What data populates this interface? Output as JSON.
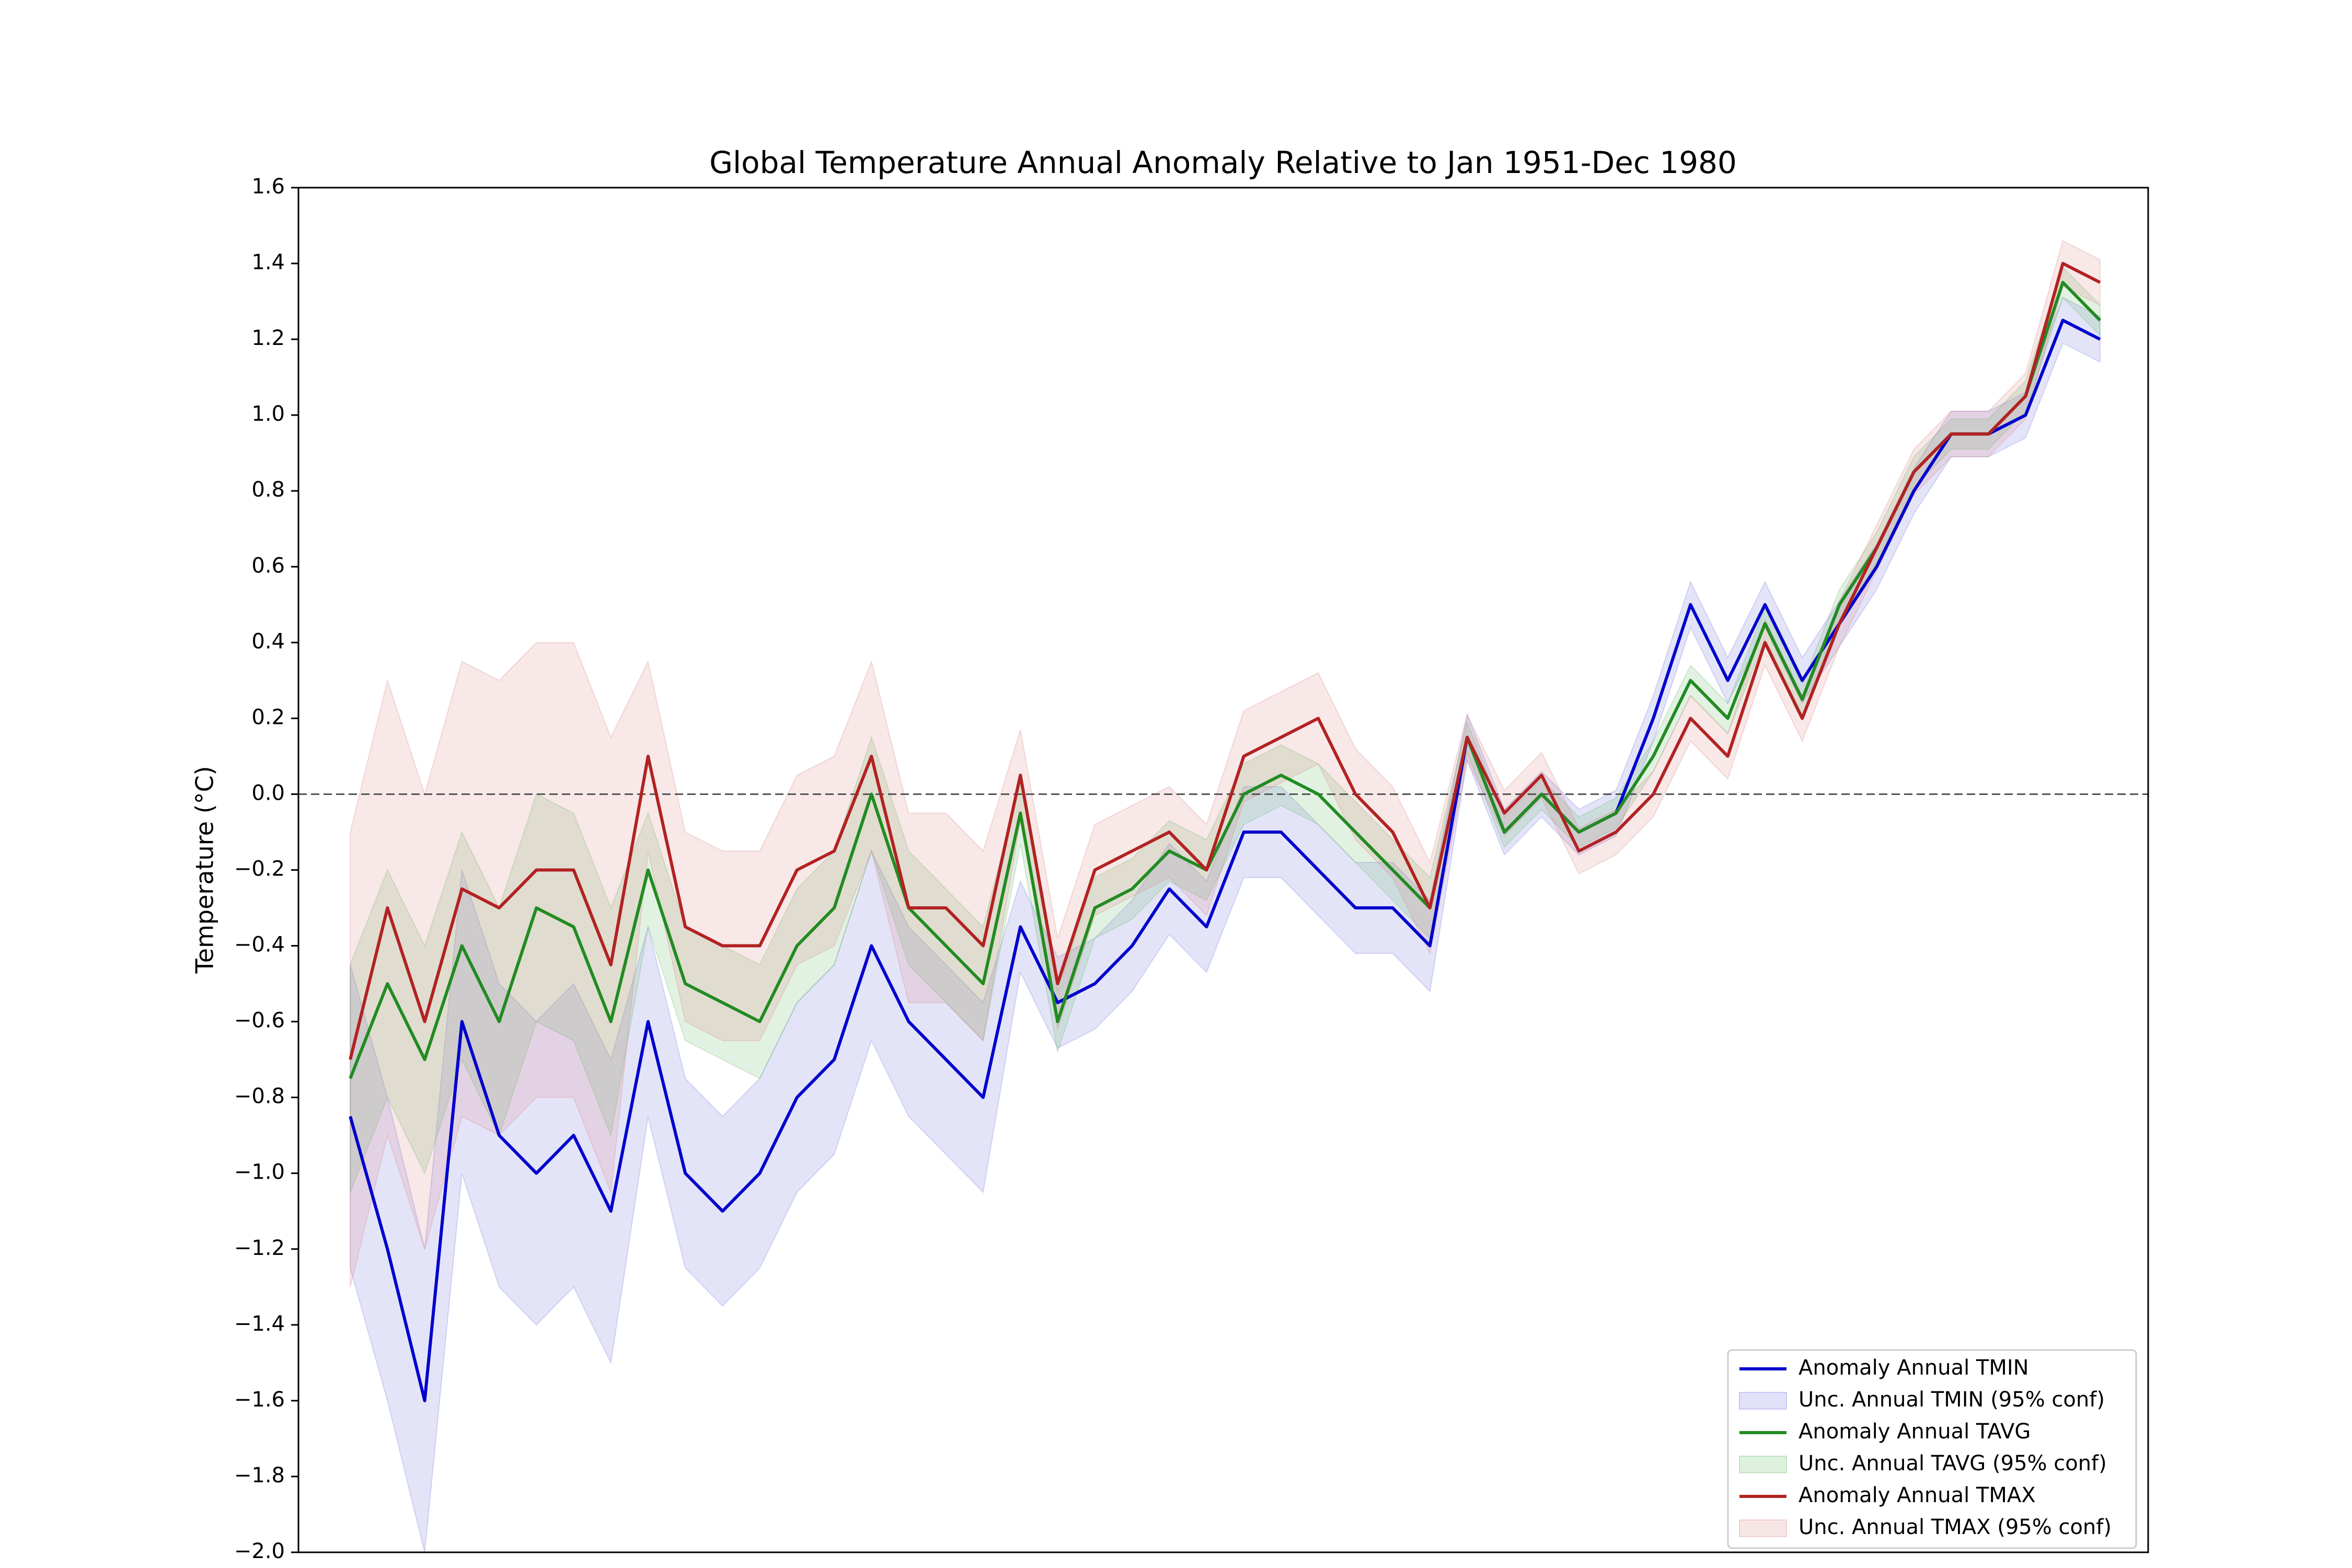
{
  "chart_data": {
    "type": "line",
    "title": "Global Temperature Annual Anomaly Relative to Jan 1951-Dec 1980",
    "y_label": "Temperature (°C)",
    "categories": [
      null,
      null,
      null,
      null,
      null,
      null,
      null,
      null,
      null,
      null,
      null,
      null,
      null,
      null,
      null,
      null,
      null,
      null,
      null,
      null,
      null,
      null,
      null,
      null,
      null,
      null,
      null,
      null,
      null,
      null,
      null,
      null,
      null,
      null,
      null,
      null,
      null,
      null,
      null,
      null,
      null,
      null,
      null,
      null,
      null,
      null,
      null,
      null
    ],
    "ylim": [
      -2.0,
      1.6
    ],
    "yticks": [
      {
        "value": -2.0,
        "label": "−2.0"
      },
      {
        "value": -1.8,
        "label": "−1.8"
      },
      {
        "value": -1.6,
        "label": "−1.6"
      },
      {
        "value": -1.4,
        "label": "−1.4"
      },
      {
        "value": -1.2,
        "label": "−1.2"
      },
      {
        "value": -1.0,
        "label": "−1.0"
      },
      {
        "value": -0.8,
        "label": "−0.8"
      },
      {
        "value": -0.6,
        "label": "−0.6"
      },
      {
        "value": -0.4,
        "label": "−0.4"
      },
      {
        "value": -0.2,
        "label": "−0.2"
      },
      {
        "value": 0,
        "label": "0.0"
      },
      0.2,
      0.4,
      0.6,
      0.8,
      {
        "value": 1.0,
        "label": "1.0"
      },
      1.2,
      1.4,
      1.6
    ],
    "reference_line": 0,
    "legend": "lower right",
    "series": [
      {
        "name": "Anomaly Annual TMIN",
        "color": "#0000cd",
        "values": [
          -0.85,
          -1.2,
          -1.6,
          -0.6,
          -0.9,
          -1.0,
          -0.9,
          -1.1,
          -0.6,
          -1.0,
          -1.1,
          -1.0,
          -0.8,
          -0.7,
          -0.4,
          -0.6,
          -0.7,
          -0.8,
          -0.35,
          -0.55,
          -0.5,
          -0.4,
          -0.25,
          -0.35,
          -0.1,
          -0.1,
          -0.2,
          -0.3,
          -0.3,
          -0.4,
          0.15,
          -0.1,
          0.0,
          -0.1,
          -0.05,
          0.2,
          0.5,
          0.3,
          0.5,
          0.3,
          0.45,
          0.6,
          0.8,
          0.95,
          0.95,
          1.0,
          1.25,
          1.2
        ],
        "band": {
          "name": "Unc. Annual TMIN (95% conf)",
          "color": "#6a6ae0",
          "values": [
            0.4,
            0.4,
            0.4,
            0.4,
            0.4,
            0.4,
            0.4,
            0.4,
            0.25,
            0.25,
            0.25,
            0.25,
            0.25,
            0.25,
            0.25,
            0.25,
            0.25,
            0.25,
            0.12,
            0.12,
            0.12,
            0.12,
            0.12,
            0.12,
            0.12,
            0.12,
            0.12,
            0.12,
            0.12,
            0.12,
            0.06,
            0.06,
            0.06,
            0.06,
            0.06,
            0.06,
            0.06,
            0.06,
            0.06,
            0.06,
            0.06,
            0.06,
            0.06,
            0.06,
            0.06,
            0.06,
            0.06,
            0.06
          ]
        }
      },
      {
        "name": "Anomaly Annual TAVG",
        "color": "#228b22",
        "values": [
          -0.75,
          -0.5,
          -0.7,
          -0.4,
          -0.6,
          -0.3,
          -0.35,
          -0.6,
          -0.2,
          -0.5,
          -0.55,
          -0.6,
          -0.4,
          -0.3,
          0.0,
          -0.3,
          -0.4,
          -0.5,
          -0.05,
          -0.6,
          -0.3,
          -0.25,
          -0.15,
          -0.2,
          0.0,
          0.05,
          0.0,
          -0.1,
          -0.2,
          -0.3,
          0.15,
          -0.1,
          0.0,
          -0.1,
          -0.05,
          0.1,
          0.3,
          0.2,
          0.45,
          0.25,
          0.5,
          0.65,
          0.85,
          0.95,
          0.95,
          1.05,
          1.35,
          1.25
        ],
        "band": {
          "name": "Unc. Annual TAVG (95% conf)",
          "color": "#5cb85c",
          "values": [
            0.3,
            0.3,
            0.3,
            0.3,
            0.3,
            0.3,
            0.3,
            0.3,
            0.15,
            0.15,
            0.15,
            0.15,
            0.15,
            0.15,
            0.15,
            0.15,
            0.15,
            0.15,
            0.08,
            0.08,
            0.08,
            0.08,
            0.08,
            0.08,
            0.08,
            0.08,
            0.08,
            0.08,
            0.08,
            0.08,
            0.04,
            0.04,
            0.04,
            0.04,
            0.04,
            0.04,
            0.04,
            0.04,
            0.04,
            0.04,
            0.04,
            0.04,
            0.04,
            0.04,
            0.04,
            0.04,
            0.04,
            0.04
          ]
        }
      },
      {
        "name": "Anomaly Annual TMAX",
        "color": "#b22222",
        "values": [
          -0.7,
          -0.3,
          -0.6,
          -0.25,
          -0.3,
          -0.2,
          -0.2,
          -0.45,
          0.1,
          -0.35,
          -0.4,
          -0.4,
          -0.2,
          -0.15,
          0.1,
          -0.3,
          -0.3,
          -0.4,
          0.05,
          -0.5,
          -0.2,
          -0.15,
          -0.1,
          -0.2,
          0.1,
          0.15,
          0.2,
          0.0,
          -0.1,
          -0.3,
          0.15,
          -0.05,
          0.05,
          -0.15,
          -0.1,
          0.0,
          0.2,
          0.1,
          0.4,
          0.2,
          0.45,
          0.65,
          0.85,
          0.95,
          0.95,
          1.05,
          1.4,
          1.35
        ],
        "band": {
          "name": "Unc. Annual TMAX (95% conf)",
          "color": "#d98080",
          "values": [
            0.6,
            0.6,
            0.6,
            0.6,
            0.6,
            0.6,
            0.6,
            0.6,
            0.25,
            0.25,
            0.25,
            0.25,
            0.25,
            0.25,
            0.25,
            0.25,
            0.25,
            0.25,
            0.12,
            0.12,
            0.12,
            0.12,
            0.12,
            0.12,
            0.12,
            0.12,
            0.12,
            0.12,
            0.12,
            0.12,
            0.06,
            0.06,
            0.06,
            0.06,
            0.06,
            0.06,
            0.06,
            0.06,
            0.06,
            0.06,
            0.06,
            0.06,
            0.06,
            0.06,
            0.06,
            0.06,
            0.06,
            0.06
          ]
        }
      }
    ]
  }
}
